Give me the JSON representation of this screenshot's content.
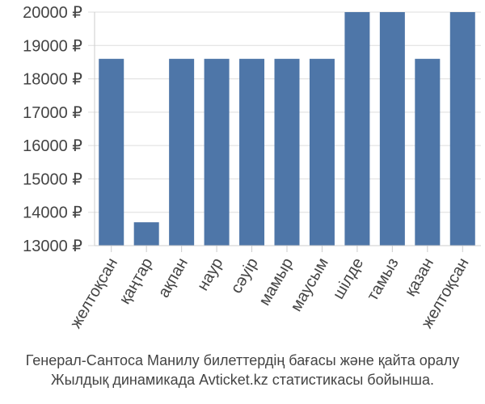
{
  "chart_data": {
    "type": "bar",
    "categories": [
      "желтоқсан",
      "қаңтар",
      "ақпан",
      "наур",
      "сәуір",
      "мамыр",
      "маусым",
      "шілде",
      "тамыз",
      "қазан",
      "желтоқсан"
    ],
    "values": [
      18600,
      13700,
      18600,
      18600,
      18600,
      18600,
      18600,
      20000,
      20000,
      18600,
      20000
    ],
    "ylim": [
      13000,
      20000
    ],
    "y_ticks": [
      13000,
      14000,
      15000,
      16000,
      17000,
      18000,
      19000,
      20000
    ],
    "y_tick_labels": [
      "13000 ₽",
      "14000 ₽",
      "15000 ₽",
      "16000 ₽",
      "17000 ₽",
      "18000 ₽",
      "19000 ₽",
      "20000 ₽"
    ],
    "grid": "horizontal",
    "bar_color": "#4e76a8",
    "grid_color": "#dddddd"
  },
  "caption": {
    "line1": "Генерал-Сантоса Манилу билеттердің бағасы және қайта оралу",
    "line2": "Жылдық динамикада Avticket.kz статистикасы бойынша."
  }
}
